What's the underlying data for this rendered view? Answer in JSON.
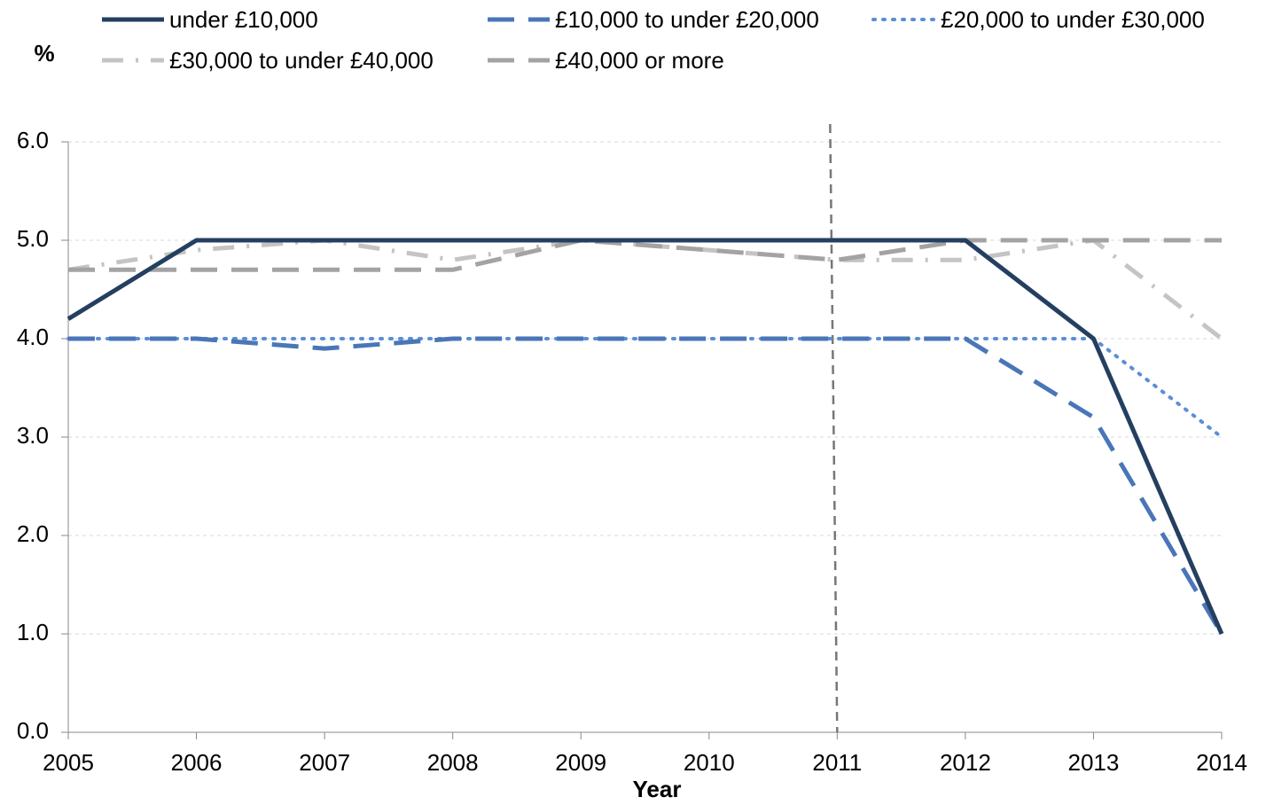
{
  "chart_data": {
    "type": "line",
    "y_label": "%",
    "x_label": "Year",
    "x": [
      2005,
      2006,
      2007,
      2008,
      2009,
      2010,
      2011,
      2012,
      2013,
      2014
    ],
    "xlim": [
      2005,
      2014
    ],
    "xticks": [
      2005,
      2006,
      2007,
      2008,
      2009,
      2010,
      2011,
      2012,
      2013,
      2014
    ],
    "ylim": [
      0,
      6
    ],
    "yticks": [
      {
        "value": 0,
        "label": "0.0"
      },
      {
        "value": 1,
        "label": "1.0"
      },
      {
        "value": 2,
        "label": "2.0"
      },
      {
        "value": 3,
        "label": "3.0"
      },
      {
        "value": 4,
        "label": "4.0"
      },
      {
        "value": 5,
        "label": "5.0"
      },
      {
        "value": 6,
        "label": "6.0"
      }
    ],
    "grid": true,
    "vline": 2011,
    "legend": "top",
    "series": [
      {
        "name": "under £10,000",
        "color": "#243f60",
        "style": "solid",
        "values": [
          4.2,
          5.0,
          5.0,
          5.0,
          5.0,
          5.0,
          5.0,
          5.0,
          4.0,
          1.0
        ]
      },
      {
        "name": "£10,000 to under £20,000",
        "color": "#4a76b8",
        "style": "dash",
        "values": [
          4.0,
          4.0,
          3.9,
          4.0,
          4.0,
          4.0,
          4.0,
          4.0,
          3.2,
          1.0
        ]
      },
      {
        "name": "£20,000 to under £30,000",
        "color": "#5b8ed6",
        "style": "dot",
        "values": [
          4.0,
          4.0,
          4.0,
          4.0,
          4.0,
          4.0,
          4.0,
          4.0,
          4.0,
          3.0
        ]
      },
      {
        "name": "£30,000 to under £40,000",
        "color": "#c4c4c4",
        "style": "dashdot",
        "values": [
          4.7,
          4.9,
          5.0,
          4.8,
          5.0,
          4.9,
          4.8,
          4.8,
          5.0,
          4.0
        ]
      },
      {
        "name": "£40,000 or more",
        "color": "#a3a3a3",
        "style": "dash",
        "values": [
          4.7,
          4.7,
          4.7,
          4.7,
          5.0,
          4.9,
          4.8,
          5.0,
          5.0,
          5.0
        ]
      }
    ]
  }
}
